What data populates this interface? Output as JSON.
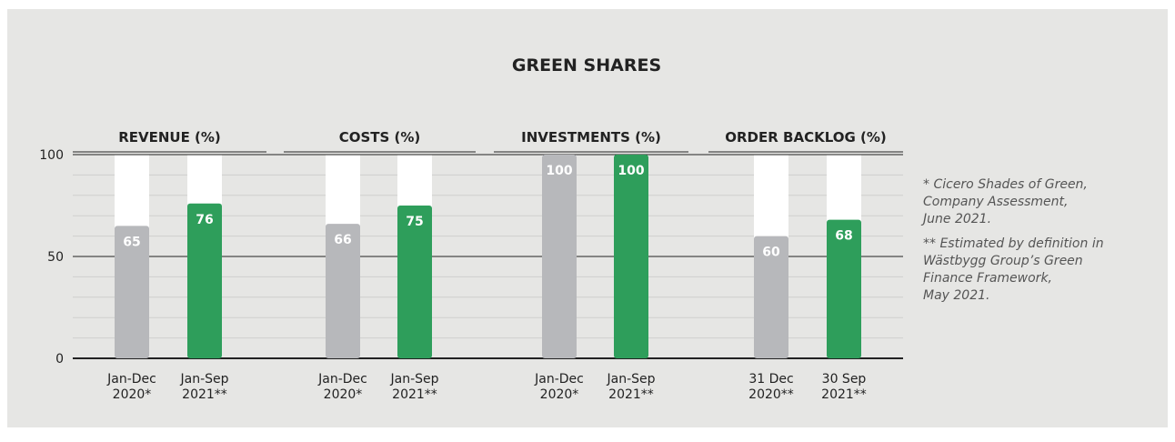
{
  "chart_data": {
    "type": "bar",
    "title": "GREEN SHARES",
    "ylim": [
      0,
      100
    ],
    "yticks": [
      0,
      50,
      100
    ],
    "minor_yticks": [
      10,
      20,
      30,
      40,
      60,
      70,
      80,
      90
    ],
    "colors": [
      "#b7b8bb",
      "#2e9e5b"
    ],
    "panels": [
      {
        "title": "REVENUE (%)",
        "categories": [
          "Jan-Dec\n2020*",
          "Jan-Sep\n2021**"
        ],
        "values": [
          65,
          76
        ]
      },
      {
        "title": "COSTS (%)",
        "categories": [
          "Jan-Dec\n2020*",
          "Jan-Sep\n2021**"
        ],
        "values": [
          66,
          75
        ]
      },
      {
        "title": "INVESTMENTS (%)",
        "categories": [
          "Jan-Dec\n2020*",
          "Jan-Sep\n2021**"
        ],
        "values": [
          100,
          100
        ]
      },
      {
        "title": "ORDER BACKLOG (%)",
        "categories": [
          "31 Dec\n2020**",
          "30 Sep\n2021**"
        ],
        "values": [
          60,
          68
        ]
      }
    ],
    "notes": [
      "* Cicero Shades of Green,\nCompany Assessment,\nJune 2021.",
      "** Estimated by definition in\nWästbygg Group’s Green\nFinance Framework,\nMay 2021."
    ]
  }
}
